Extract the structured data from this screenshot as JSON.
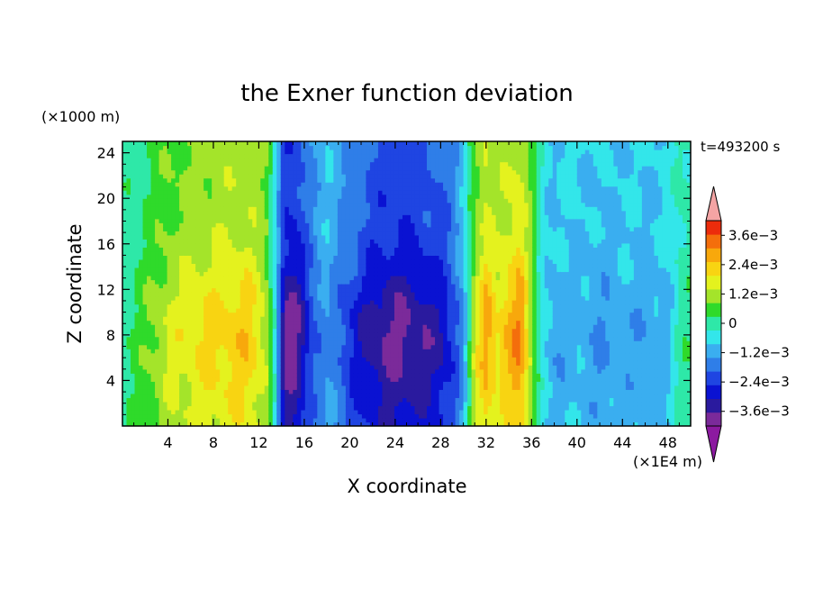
{
  "chart_data": {
    "type": "heatmap",
    "title": "the Exner function deviation",
    "xlabel": "X coordinate",
    "ylabel": "Z coordinate",
    "x_unit": "(×1E4 m)",
    "y_unit": "(×1000 m)",
    "time_label": "t=493200 s",
    "xlim": [
      0,
      50
    ],
    "ylim": [
      0,
      25
    ],
    "x_ticks": [
      4,
      8,
      12,
      16,
      20,
      24,
      28,
      32,
      36,
      40,
      44,
      48
    ],
    "y_ticks": [
      4,
      8,
      12,
      16,
      20,
      24
    ],
    "x_tick_labels": [
      "4",
      "8",
      "12",
      "16",
      "20",
      "24",
      "28",
      "32",
      "36",
      "40",
      "44",
      "48"
    ],
    "y_tick_labels": [
      "4",
      "8",
      "12",
      "16",
      "20",
      "24"
    ],
    "colorbar": {
      "levels": [
        -0.0042,
        -0.0036,
        -0.003,
        -0.0024,
        -0.0018,
        -0.0012,
        -0.0006,
        0,
        0.0006,
        0.0012,
        0.0018,
        0.0024,
        0.003,
        0.0036,
        0.0042
      ],
      "colors": [
        "#7b2a9a",
        "#2a1a9e",
        "#0a12d2",
        "#1f45e2",
        "#2f7ee8",
        "#3aaef0",
        "#33e6ea",
        "#2ee8a8",
        "#2fda2a",
        "#a4e42a",
        "#e4f21e",
        "#f8d412",
        "#f8a80c",
        "#f46e0c",
        "#ec2c0c"
      ],
      "under_color": "#8c1aa0",
      "over_color": "#f4a4a4",
      "tick_values": [
        0.0036,
        0.0024,
        0.0012,
        0,
        -0.0012,
        -0.0024,
        -0.0036
      ],
      "tick_labels": [
        "3.6e−3",
        "2.4e−3",
        "1.2e−3",
        "0",
        "−1.2e−3",
        "−2.4e−3",
        "−3.6e−3"
      ]
    },
    "field_profile_x": [
      0,
      1,
      2,
      3,
      4,
      6,
      8,
      10,
      11,
      12,
      12.8,
      13.5,
      14.2,
      15,
      16,
      17,
      18,
      19,
      20,
      22,
      24,
      26,
      28,
      29,
      30,
      30.5,
      31,
      32,
      33,
      34,
      35,
      36,
      37,
      38,
      40,
      42,
      44,
      46,
      48,
      49,
      50
    ],
    "field_profile_value": [
      0.0003,
      0.0005,
      0.0008,
      0.0011,
      0.0014,
      0.0017,
      0.0019,
      0.002,
      0.0021,
      0.0017,
      0.0012,
      -0.0004,
      -0.0028,
      -0.003,
      -0.0022,
      -0.0014,
      -0.0009,
      -0.0013,
      -0.0018,
      -0.0025,
      -0.0028,
      -0.0026,
      -0.0023,
      -0.0018,
      -0.0009,
      0.0004,
      0.0014,
      0.0025,
      0.0018,
      0.0023,
      0.0027,
      0.0012,
      -0.0003,
      -0.0008,
      -0.0006,
      -0.0009,
      -0.0007,
      -0.0008,
      -0.0006,
      0.0002,
      0.0003
    ]
  }
}
